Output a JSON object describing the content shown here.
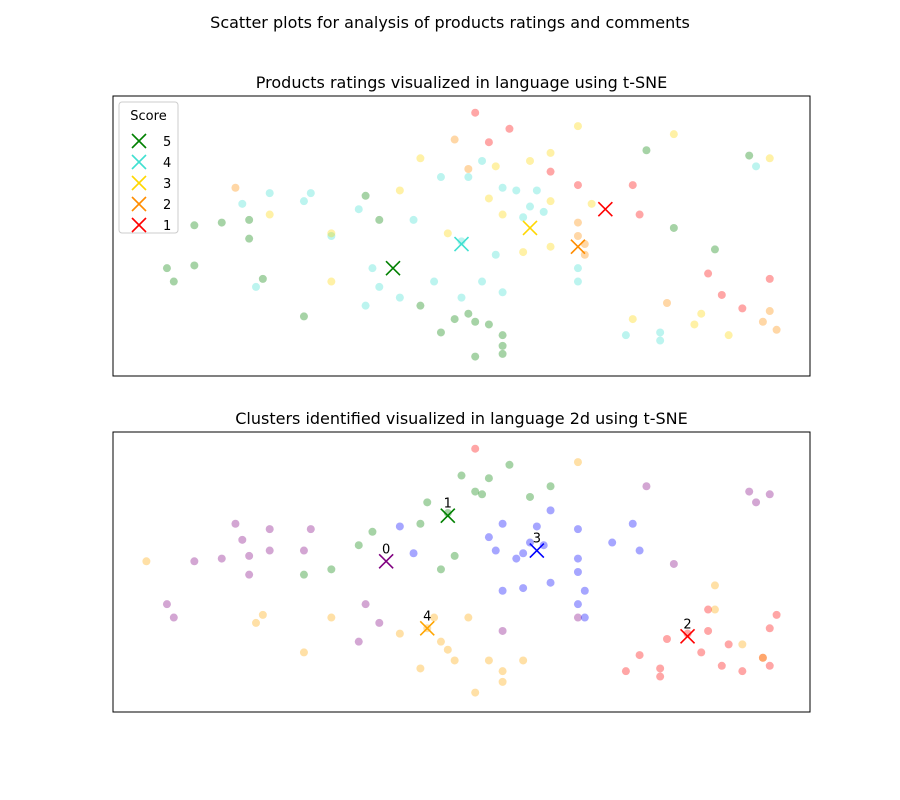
{
  "figure": {
    "title": "Scatter plots for analysis of products ratings and comments"
  },
  "colors": {
    "score_5": "#008000",
    "score_4": "#40e0d0",
    "score_3": "#ffd700",
    "score_2": "#ff8c00",
    "score_1": "#ff0000",
    "cluster_0": "#800080",
    "cluster_1": "#008000",
    "cluster_2": "#ff0000",
    "cluster_3": "#0000ff",
    "cluster_4": "#ffa500"
  },
  "chart_data": [
    {
      "type": "scatter",
      "title": "Products ratings visualized in language using t-SNE",
      "xlabel": "",
      "ylabel": "",
      "xlim": [
        0,
        100
      ],
      "ylim": [
        0,
        100
      ],
      "axis_ticks": false,
      "grid": false,
      "legend": {
        "title": "Score",
        "placement": "top-left",
        "entries": [
          "5",
          "4",
          "3",
          "2",
          "1"
        ]
      },
      "series": [
        {
          "name": "5",
          "color": "#008000",
          "marker": "o",
          "alpha": 0.35,
          "points": [
            [
              7,
              38
            ],
            [
              8,
              33
            ],
            [
              11,
              54
            ],
            [
              11,
              39
            ],
            [
              15,
              55
            ],
            [
              19,
              56
            ],
            [
              19,
              49
            ],
            [
              21,
              34
            ],
            [
              27,
              20
            ],
            [
              36,
              65
            ],
            [
              38,
              56
            ],
            [
              44,
              24
            ],
            [
              47,
              14
            ],
            [
              49,
              19
            ],
            [
              51,
              21
            ],
            [
              52,
              18
            ],
            [
              56,
              13
            ],
            [
              52,
              5
            ],
            [
              54,
              17
            ],
            [
              56,
              9
            ],
            [
              56,
              6
            ],
            [
              77,
              82
            ],
            [
              81,
              53
            ],
            [
              87,
              45
            ],
            [
              92,
              80
            ]
          ]
        },
        {
          "name": "4",
          "color": "#40e0d0",
          "marker": "o",
          "alpha": 0.35,
          "points": [
            [
              18,
              62
            ],
            [
              22,
              66
            ],
            [
              20,
              31
            ],
            [
              27,
              63
            ],
            [
              28,
              66
            ],
            [
              31,
              50
            ],
            [
              35,
              60
            ],
            [
              36,
              24
            ],
            [
              37,
              38
            ],
            [
              38,
              31
            ],
            [
              41,
              27
            ],
            [
              43,
              56
            ],
            [
              46,
              33
            ],
            [
              47,
              72
            ],
            [
              50,
              48
            ],
            [
              50,
              27
            ],
            [
              51,
              72
            ],
            [
              53,
              78
            ],
            [
              53,
              33
            ],
            [
              55,
              43
            ],
            [
              56,
              68
            ],
            [
              56,
              29
            ],
            [
              58,
              67
            ],
            [
              60,
              61
            ],
            [
              59,
              57
            ],
            [
              61,
              67
            ],
            [
              62,
              59
            ],
            [
              67,
              33
            ],
            [
              67,
              38
            ],
            [
              74,
              13
            ],
            [
              79,
              14
            ],
            [
              79,
              11
            ],
            [
              93,
              76
            ]
          ]
        },
        {
          "name": "3",
          "color": "#ffd700",
          "marker": "o",
          "alpha": 0.35,
          "points": [
            [
              22,
              58
            ],
            [
              31,
              51
            ],
            [
              31,
              33
            ],
            [
              41,
              67
            ],
            [
              44,
              79
            ],
            [
              48,
              51
            ],
            [
              54,
              64
            ],
            [
              55,
              76
            ],
            [
              56,
              58
            ],
            [
              59,
              44
            ],
            [
              60,
              78
            ],
            [
              63,
              81
            ],
            [
              63,
              63
            ],
            [
              63,
              46
            ],
            [
              67,
              91
            ],
            [
              69,
              62
            ],
            [
              75,
              19
            ],
            [
              81,
              88
            ],
            [
              84,
              17
            ],
            [
              85,
              21
            ],
            [
              89,
              13
            ],
            [
              95,
              79
            ]
          ]
        },
        {
          "name": "2",
          "color": "#ff8c00",
          "marker": "o",
          "alpha": 0.35,
          "points": [
            [
              17,
              68
            ],
            [
              49,
              86
            ],
            [
              51,
              75
            ],
            [
              67,
              55
            ],
            [
              67,
              50
            ],
            [
              68,
              47
            ],
            [
              68,
              43
            ],
            [
              80,
              25
            ],
            [
              95,
              22
            ],
            [
              96,
              15
            ],
            [
              94,
              18
            ]
          ]
        },
        {
          "name": "1",
          "color": "#ff0000",
          "marker": "o",
          "alpha": 0.35,
          "points": [
            [
              52,
              96
            ],
            [
              54,
              85
            ],
            [
              57,
              90
            ],
            [
              63,
              74
            ],
            [
              67,
              69
            ],
            [
              75,
              69
            ],
            [
              76,
              58
            ],
            [
              86,
              36
            ],
            [
              88,
              28
            ],
            [
              91,
              23
            ],
            [
              95,
              34
            ]
          ]
        },
        {
          "name": "centroid-5",
          "color": "#008000",
          "marker": "x",
          "alpha": 1,
          "points": [
            [
              40,
              38
            ]
          ]
        },
        {
          "name": "centroid-4",
          "color": "#40e0d0",
          "marker": "x",
          "alpha": 1,
          "points": [
            [
              50,
              47
            ]
          ]
        },
        {
          "name": "centroid-3",
          "color": "#ffd700",
          "marker": "x",
          "alpha": 1,
          "points": [
            [
              60,
              53
            ]
          ]
        },
        {
          "name": "centroid-2",
          "color": "#ff8c00",
          "marker": "x",
          "alpha": 1,
          "points": [
            [
              67,
              46
            ]
          ]
        },
        {
          "name": "centroid-1",
          "color": "#ff0000",
          "marker": "x",
          "alpha": 1,
          "points": [
            [
              71,
              60
            ]
          ]
        }
      ]
    },
    {
      "type": "scatter",
      "title": "Clusters identified visualized in language 2d using t-SNE",
      "xlabel": "",
      "ylabel": "",
      "xlim": [
        0,
        100
      ],
      "ylim": [
        0,
        100
      ],
      "axis_ticks": false,
      "grid": false,
      "series": [
        {
          "name": "0",
          "color": "#800080",
          "marker": "o",
          "alpha": 0.35,
          "points": [
            [
              7,
              38
            ],
            [
              8,
              33
            ],
            [
              11,
              54
            ],
            [
              15,
              55
            ],
            [
              17,
              68
            ],
            [
              18,
              62
            ],
            [
              19,
              56
            ],
            [
              19,
              49
            ],
            [
              22,
              66
            ],
            [
              22,
              58
            ],
            [
              28,
              66
            ],
            [
              27,
              58
            ],
            [
              36,
              38
            ],
            [
              38,
              31
            ],
            [
              35,
              24
            ],
            [
              56,
              28
            ],
            [
              67,
              33
            ],
            [
              77,
              82
            ],
            [
              81,
              53
            ],
            [
              92,
              80
            ],
            [
              93,
              76
            ],
            [
              95,
              79
            ]
          ]
        },
        {
          "name": "1",
          "color": "#008000",
          "marker": "o",
          "alpha": 0.35,
          "points": [
            [
              27,
              49
            ],
            [
              31,
              51
            ],
            [
              35,
              60
            ],
            [
              37,
              65
            ],
            [
              44,
              68
            ],
            [
              45,
              76
            ],
            [
              48,
              72
            ],
            [
              49,
              56
            ],
            [
              47,
              51
            ],
            [
              50,
              86
            ],
            [
              52,
              80
            ],
            [
              53,
              79
            ],
            [
              54,
              85
            ],
            [
              57,
              90
            ],
            [
              60,
              78
            ],
            [
              63,
              82
            ]
          ]
        },
        {
          "name": "2",
          "color": "#ff0000",
          "marker": "o",
          "alpha": 0.35,
          "points": [
            [
              52,
              96
            ],
            [
              74,
              13
            ],
            [
              76,
              19
            ],
            [
              79,
              11
            ],
            [
              79,
              14
            ],
            [
              80,
              25
            ],
            [
              83,
              27
            ],
            [
              85,
              20
            ],
            [
              86,
              28
            ],
            [
              86,
              36
            ],
            [
              88,
              15
            ],
            [
              89,
              23
            ],
            [
              91,
              13
            ],
            [
              94,
              18
            ],
            [
              95,
              29
            ],
            [
              96,
              34
            ],
            [
              95,
              15
            ]
          ]
        },
        {
          "name": "3",
          "color": "#0000ff",
          "marker": "o",
          "alpha": 0.35,
          "points": [
            [
              41,
              67
            ],
            [
              43,
              57
            ],
            [
              54,
              63
            ],
            [
              55,
              58
            ],
            [
              56,
              43
            ],
            [
              56,
              68
            ],
            [
              58,
              55
            ],
            [
              60,
              61
            ],
            [
              59,
              57
            ],
            [
              59,
              44
            ],
            [
              61,
              67
            ],
            [
              62,
              60
            ],
            [
              63,
              73
            ],
            [
              63,
              46
            ],
            [
              67,
              55
            ],
            [
              67,
              50
            ],
            [
              67,
              66
            ],
            [
              68,
              43
            ],
            [
              67,
              38
            ],
            [
              68,
              33
            ],
            [
              72,
              61
            ],
            [
              75,
              68
            ],
            [
              76,
              58
            ]
          ]
        },
        {
          "name": "4",
          "color": "#ffa500",
          "marker": "o",
          "alpha": 0.35,
          "points": [
            [
              4,
              54
            ],
            [
              20,
              31
            ],
            [
              21,
              34
            ],
            [
              27,
              20
            ],
            [
              31,
              33
            ],
            [
              41,
              27
            ],
            [
              44,
              14
            ],
            [
              45,
              29
            ],
            [
              46,
              33
            ],
            [
              47,
              24
            ],
            [
              48,
              21
            ],
            [
              49,
              17
            ],
            [
              51,
              33
            ],
            [
              52,
              5
            ],
            [
              54,
              17
            ],
            [
              56,
              13
            ],
            [
              56,
              9
            ],
            [
              59,
              17
            ],
            [
              67,
              91
            ],
            [
              87,
              45
            ],
            [
              87,
              36
            ],
            [
              91,
              23
            ],
            [
              94,
              18
            ]
          ]
        },
        {
          "name": "centroid-0",
          "color": "#800080",
          "marker": "x",
          "label": "0",
          "alpha": 1,
          "points": [
            [
              39,
              54
            ]
          ]
        },
        {
          "name": "centroid-1",
          "color": "#008000",
          "marker": "x",
          "label": "1",
          "alpha": 1,
          "points": [
            [
              48,
              71
            ]
          ]
        },
        {
          "name": "centroid-2",
          "color": "#ff0000",
          "marker": "x",
          "label": "2",
          "alpha": 1,
          "points": [
            [
              83,
              26
            ]
          ]
        },
        {
          "name": "centroid-3",
          "color": "#0000ff",
          "marker": "x",
          "label": "3",
          "alpha": 1,
          "points": [
            [
              61,
              58
            ]
          ]
        },
        {
          "name": "centroid-4",
          "color": "#ffa500",
          "marker": "x",
          "label": "4",
          "alpha": 1,
          "points": [
            [
              45,
              29
            ]
          ]
        }
      ]
    }
  ]
}
